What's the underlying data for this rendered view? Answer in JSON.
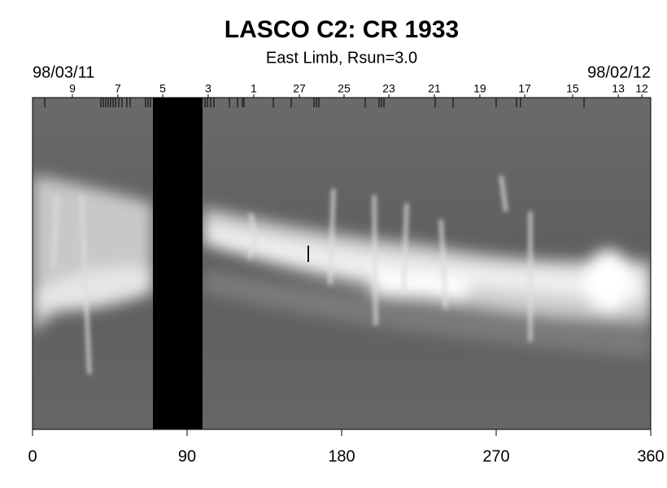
{
  "chart_data": {
    "type": "synoptic",
    "title": "LASCO C2: CR 1933",
    "subtitle": "East Limb, Rsun=3.0",
    "start_date": "98/03/11",
    "end_date": "98/02/12",
    "xlim": [
      0,
      360
    ],
    "xticks": [
      0,
      90,
      180,
      270,
      360
    ],
    "x2ticks": [
      {
        "value": 23.2,
        "label": "9"
      },
      {
        "value": 49.7,
        "label": "7"
      },
      {
        "value": 75.8,
        "label": "5"
      },
      {
        "value": 102.3,
        "label": "3"
      },
      {
        "value": 128.8,
        "label": "1"
      },
      {
        "value": 155.4,
        "label": "27"
      },
      {
        "value": 181.4,
        "label": "25"
      },
      {
        "value": 207.5,
        "label": "23"
      },
      {
        "value": 234.0,
        "label": "21"
      },
      {
        "value": 260.5,
        "label": "19"
      },
      {
        "value": 286.6,
        "label": "17"
      },
      {
        "value": 314.5,
        "label": "15"
      },
      {
        "value": 341.1,
        "label": "13"
      },
      {
        "value": 354.8,
        "label": "12"
      }
    ]
  }
}
